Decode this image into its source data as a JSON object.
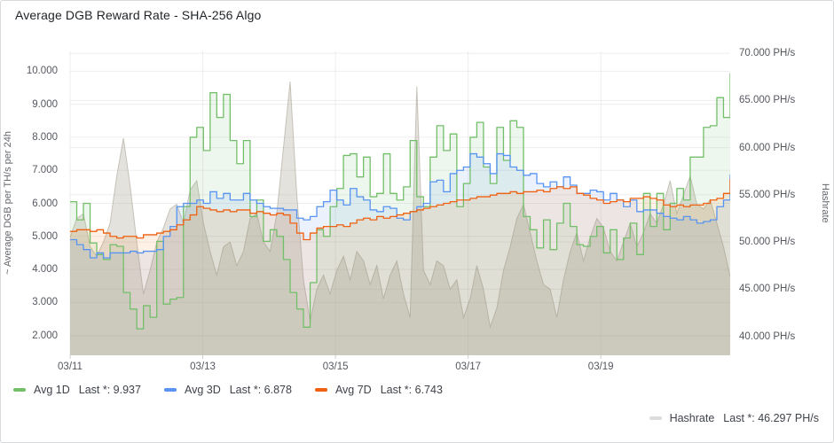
{
  "panel": {
    "title": "Average DGB Reward Rate - SHA-256 Algo"
  },
  "legend": {
    "items": [
      {
        "label": "Avg 1D",
        "stat": "Last *: 9.937",
        "color": "#73BF69"
      },
      {
        "label": "Avg 3D",
        "stat": "Last *: 6.878",
        "color": "#5794F2"
      },
      {
        "label": "Avg 7D",
        "stat": "Last *: 6.743",
        "color": "#EF6110"
      }
    ],
    "hashrate": {
      "label": "Hashrate",
      "stat": "Last *: 46.297 PH/s",
      "color": "#DCDCDC"
    }
  },
  "chart_data": {
    "type": "line",
    "title": "Average DGB Reward Rate - SHA-256 Algo",
    "grid": true,
    "legend_position": "bottom",
    "x_axis": {
      "range_days": [
        0,
        9.95
      ],
      "ticks": [
        {
          "label": "03/11",
          "day": 0
        },
        {
          "label": "03/13",
          "day": 2
        },
        {
          "label": "03/15",
          "day": 4
        },
        {
          "label": "03/17",
          "day": 6
        },
        {
          "label": "03/19",
          "day": 8
        }
      ]
    },
    "y_left": {
      "label": "~ Average DGB per TH/s per 24h",
      "range": [
        1.4,
        10.6
      ],
      "ticks": [
        {
          "label": "10.000",
          "value": 10
        },
        {
          "label": "9.000",
          "value": 9
        },
        {
          "label": "8.000",
          "value": 8
        },
        {
          "label": "7.000",
          "value": 7
        },
        {
          "label": "6.000",
          "value": 6
        },
        {
          "label": "5.000",
          "value": 5
        },
        {
          "label": "4.000",
          "value": 4
        },
        {
          "label": "3.000",
          "value": 3
        },
        {
          "label": "2.000",
          "value": 2
        }
      ]
    },
    "y_right": {
      "label": "Hashrate",
      "range": [
        38.0,
        70.2
      ],
      "ticks": [
        {
          "label": "70.000 PH/s",
          "value": 70
        },
        {
          "label": "65.000 PH/s",
          "value": 65
        },
        {
          "label": "60.000 PH/s",
          "value": 60
        },
        {
          "label": "55.000 PH/s",
          "value": 55
        },
        {
          "label": "50.000 PH/s",
          "value": 50
        },
        {
          "label": "45.000 PH/s",
          "value": 45
        },
        {
          "label": "40.000 PH/s",
          "value": 40
        }
      ]
    },
    "series": [
      {
        "name": "Avg 1D",
        "axis": "left",
        "style": "step",
        "last": "9.937",
        "color": "#73BF69",
        "fill": "rgba(115,191,105,0.12)",
        "values": [
          6.05,
          5.5,
          6.0,
          4.8,
          4.45,
          4.3,
          4.75,
          4.7,
          3.3,
          2.8,
          2.2,
          2.9,
          2.55,
          4.85,
          2.95,
          3.1,
          3.15,
          5.9,
          8.0,
          8.3,
          7.6,
          9.35,
          8.6,
          9.3,
          7.9,
          7.2,
          7.9,
          5.6,
          6.1,
          4.85,
          5.2,
          5.0,
          4.3,
          3.3,
          2.8,
          2.25,
          3.6,
          5.2,
          5.0,
          5.9,
          6.45,
          7.45,
          7.5,
          6.8,
          7.4,
          6.2,
          6.3,
          7.5,
          6.3,
          6.1,
          6.5,
          7.9,
          6.2,
          5.9,
          7.4,
          8.35,
          7.6,
          8.1,
          5.9,
          6.6,
          8.0,
          8.45,
          7.1,
          6.6,
          8.3,
          7.3,
          8.5,
          8.3,
          5.6,
          5.2,
          4.65,
          5.5,
          4.6,
          5.4,
          6.0,
          5.3,
          4.75,
          4.7,
          5.0,
          5.3,
          4.5,
          5.2,
          4.3,
          4.95,
          5.4,
          4.45,
          6.3,
          5.3,
          6.3,
          5.2,
          6.0,
          6.45,
          6.1,
          7.4,
          7.4,
          8.3,
          8.35,
          9.2,
          8.6,
          9.94
        ]
      },
      {
        "name": "Avg 3D",
        "axis": "left",
        "style": "step",
        "last": "6.878",
        "color": "#5794F2",
        "fill": "rgba(87,148,242,0.12)",
        "values": [
          4.9,
          4.75,
          4.6,
          4.35,
          4.5,
          4.35,
          4.5,
          4.5,
          4.5,
          4.55,
          4.5,
          4.55,
          4.55,
          4.6,
          5.0,
          5.3,
          5.9,
          6.0,
          6.0,
          6.1,
          6.0,
          6.35,
          6.15,
          6.3,
          6.1,
          6.1,
          6.3,
          6.1,
          6.0,
          5.9,
          5.85,
          5.85,
          5.8,
          5.8,
          5.55,
          5.5,
          5.6,
          5.9,
          6.05,
          6.4,
          6.1,
          5.95,
          6.45,
          6.2,
          6.1,
          5.8,
          5.75,
          5.9,
          5.85,
          5.55,
          5.5,
          5.75,
          5.9,
          6.0,
          6.65,
          6.7,
          6.35,
          6.9,
          7.0,
          7.1,
          7.5,
          7.4,
          7.2,
          6.9,
          7.5,
          7.45,
          7.1,
          7.0,
          6.85,
          6.9,
          6.6,
          6.5,
          6.65,
          6.5,
          6.8,
          6.55,
          6.3,
          6.3,
          6.4,
          6.35,
          6.1,
          6.3,
          6.1,
          5.9,
          6.1,
          5.75,
          5.8,
          5.8,
          5.7,
          5.6,
          5.55,
          5.5,
          5.6,
          5.5,
          5.4,
          5.45,
          5.5,
          5.9,
          6.1,
          6.88
        ]
      },
      {
        "name": "Avg 7D",
        "axis": "left",
        "style": "step",
        "last": "6.743",
        "color": "#EF6110",
        "fill": "rgba(255,120,10,0.10)",
        "values": [
          5.15,
          5.2,
          5.2,
          5.15,
          5.2,
          5.1,
          5.0,
          4.95,
          5.0,
          5.0,
          4.95,
          5.05,
          5.05,
          5.1,
          5.15,
          5.2,
          5.35,
          5.5,
          5.65,
          5.9,
          5.85,
          5.8,
          5.75,
          5.8,
          5.75,
          5.8,
          5.8,
          5.7,
          5.75,
          5.7,
          5.65,
          5.7,
          5.65,
          5.4,
          5.1,
          4.9,
          5.1,
          5.25,
          5.3,
          5.3,
          5.35,
          5.3,
          5.4,
          5.5,
          5.55,
          5.5,
          5.6,
          5.55,
          5.6,
          5.65,
          5.7,
          5.75,
          5.8,
          5.85,
          5.9,
          5.95,
          6.0,
          6.05,
          6.1,
          6.1,
          6.15,
          6.2,
          6.2,
          6.25,
          6.3,
          6.3,
          6.35,
          6.3,
          6.35,
          6.35,
          6.4,
          6.35,
          6.45,
          6.5,
          6.45,
          6.5,
          6.3,
          6.25,
          6.15,
          6.1,
          6.0,
          6.05,
          6.1,
          6.05,
          6.15,
          6.15,
          6.2,
          6.15,
          6.1,
          5.95,
          5.9,
          5.95,
          5.9,
          5.95,
          5.95,
          6.0,
          6.1,
          6.15,
          6.3,
          6.74
        ]
      },
      {
        "name": "Hashrate",
        "axis": "right",
        "style": "linear",
        "last": "46.297 PH/s",
        "color": "rgba(162,156,142,0.55)",
        "fill": "rgba(184,178,164,0.38)",
        "values": [
          50.5,
          52.5,
          53.0,
          49.5,
          48.5,
          50.0,
          52.0,
          57.0,
          61.0,
          56.0,
          50.0,
          44.5,
          47.0,
          50.0,
          51.5,
          53.5,
          54.0,
          52.0,
          55.5,
          56.5,
          52.0,
          49.0,
          46.5,
          49.5,
          50.0,
          47.5,
          49.0,
          52.5,
          53.0,
          50.0,
          49.0,
          53.0,
          60.0,
          67.0,
          55.0,
          46.0,
          41.6,
          45.0,
          46.5,
          44.5,
          47.0,
          48.5,
          46.0,
          49.0,
          48.0,
          45.5,
          47.5,
          44.0,
          46.5,
          48.0,
          44.5,
          42.0,
          66.5,
          47.0,
          45.5,
          48.0,
          47.5,
          45.0,
          46.0,
          42.0,
          44.0,
          47.5,
          45.0,
          41.0,
          43.0,
          47.0,
          49.5,
          52.5,
          54.0,
          51.0,
          48.0,
          45.5,
          45.0,
          42.0,
          46.0,
          49.0,
          51.0,
          48.0,
          50.5,
          52.5,
          51.5,
          49.0,
          48.0,
          50.0,
          52.0,
          49.5,
          51.0,
          53.0,
          52.0,
          54.0,
          56.5,
          53.0,
          55.0,
          57.0,
          54.0,
          53.5,
          54.5,
          52.0,
          49.5,
          46.3
        ]
      }
    ]
  }
}
